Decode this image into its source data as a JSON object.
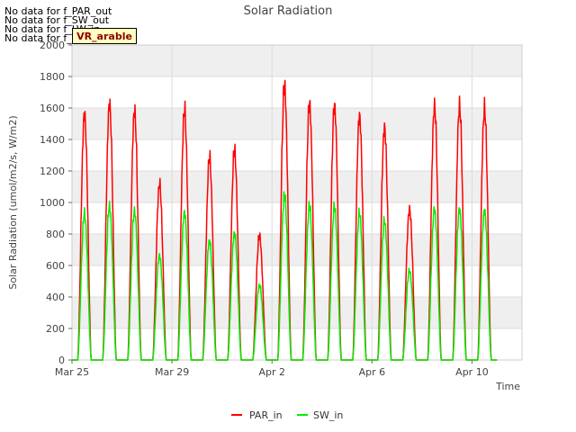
{
  "notes": [
    "No data for f_PAR_out",
    "No data for f_SW_out",
    "No data for f_LW_in",
    "No data for f_LW_out"
  ],
  "badge": "VR_arable",
  "colors": {
    "PAR_in": "#ff0000",
    "SW_in": "#00ee00",
    "band": "#efefef"
  },
  "chart_data": {
    "type": "line",
    "title": "Solar Radiation",
    "xlabel": "Time",
    "ylabel": "Solar Radiation (umol/m2/s, W/m2)",
    "ylim": [
      0,
      2000
    ],
    "xlim": [
      0,
      18
    ],
    "yticks": [
      0,
      200,
      400,
      600,
      800,
      1000,
      1200,
      1400,
      1600,
      1800,
      2000
    ],
    "xticks": [
      {
        "value": 0,
        "label": "Mar 25"
      },
      {
        "value": 4,
        "label": "Mar 29"
      },
      {
        "value": 8,
        "label": "Apr 2"
      },
      {
        "value": 12,
        "label": "Apr 6"
      },
      {
        "value": 16,
        "label": "Apr 10"
      }
    ],
    "legend": "bottom-center",
    "series": [
      {
        "name": "PAR_in",
        "daily_peaks": [
          1650,
          1720,
          1670,
          1180,
          1670,
          1350,
          1400,
          830,
          1840,
          1720,
          1710,
          1640,
          1560,
          1010,
          1700,
          1700,
          1680
        ]
      },
      {
        "name": "SW_in",
        "daily_peaks": [
          980,
          1030,
          1000,
          700,
          990,
          800,
          850,
          500,
          1100,
          1030,
          1020,
          980,
          930,
          600,
          1010,
          1010,
          1000
        ]
      }
    ]
  }
}
